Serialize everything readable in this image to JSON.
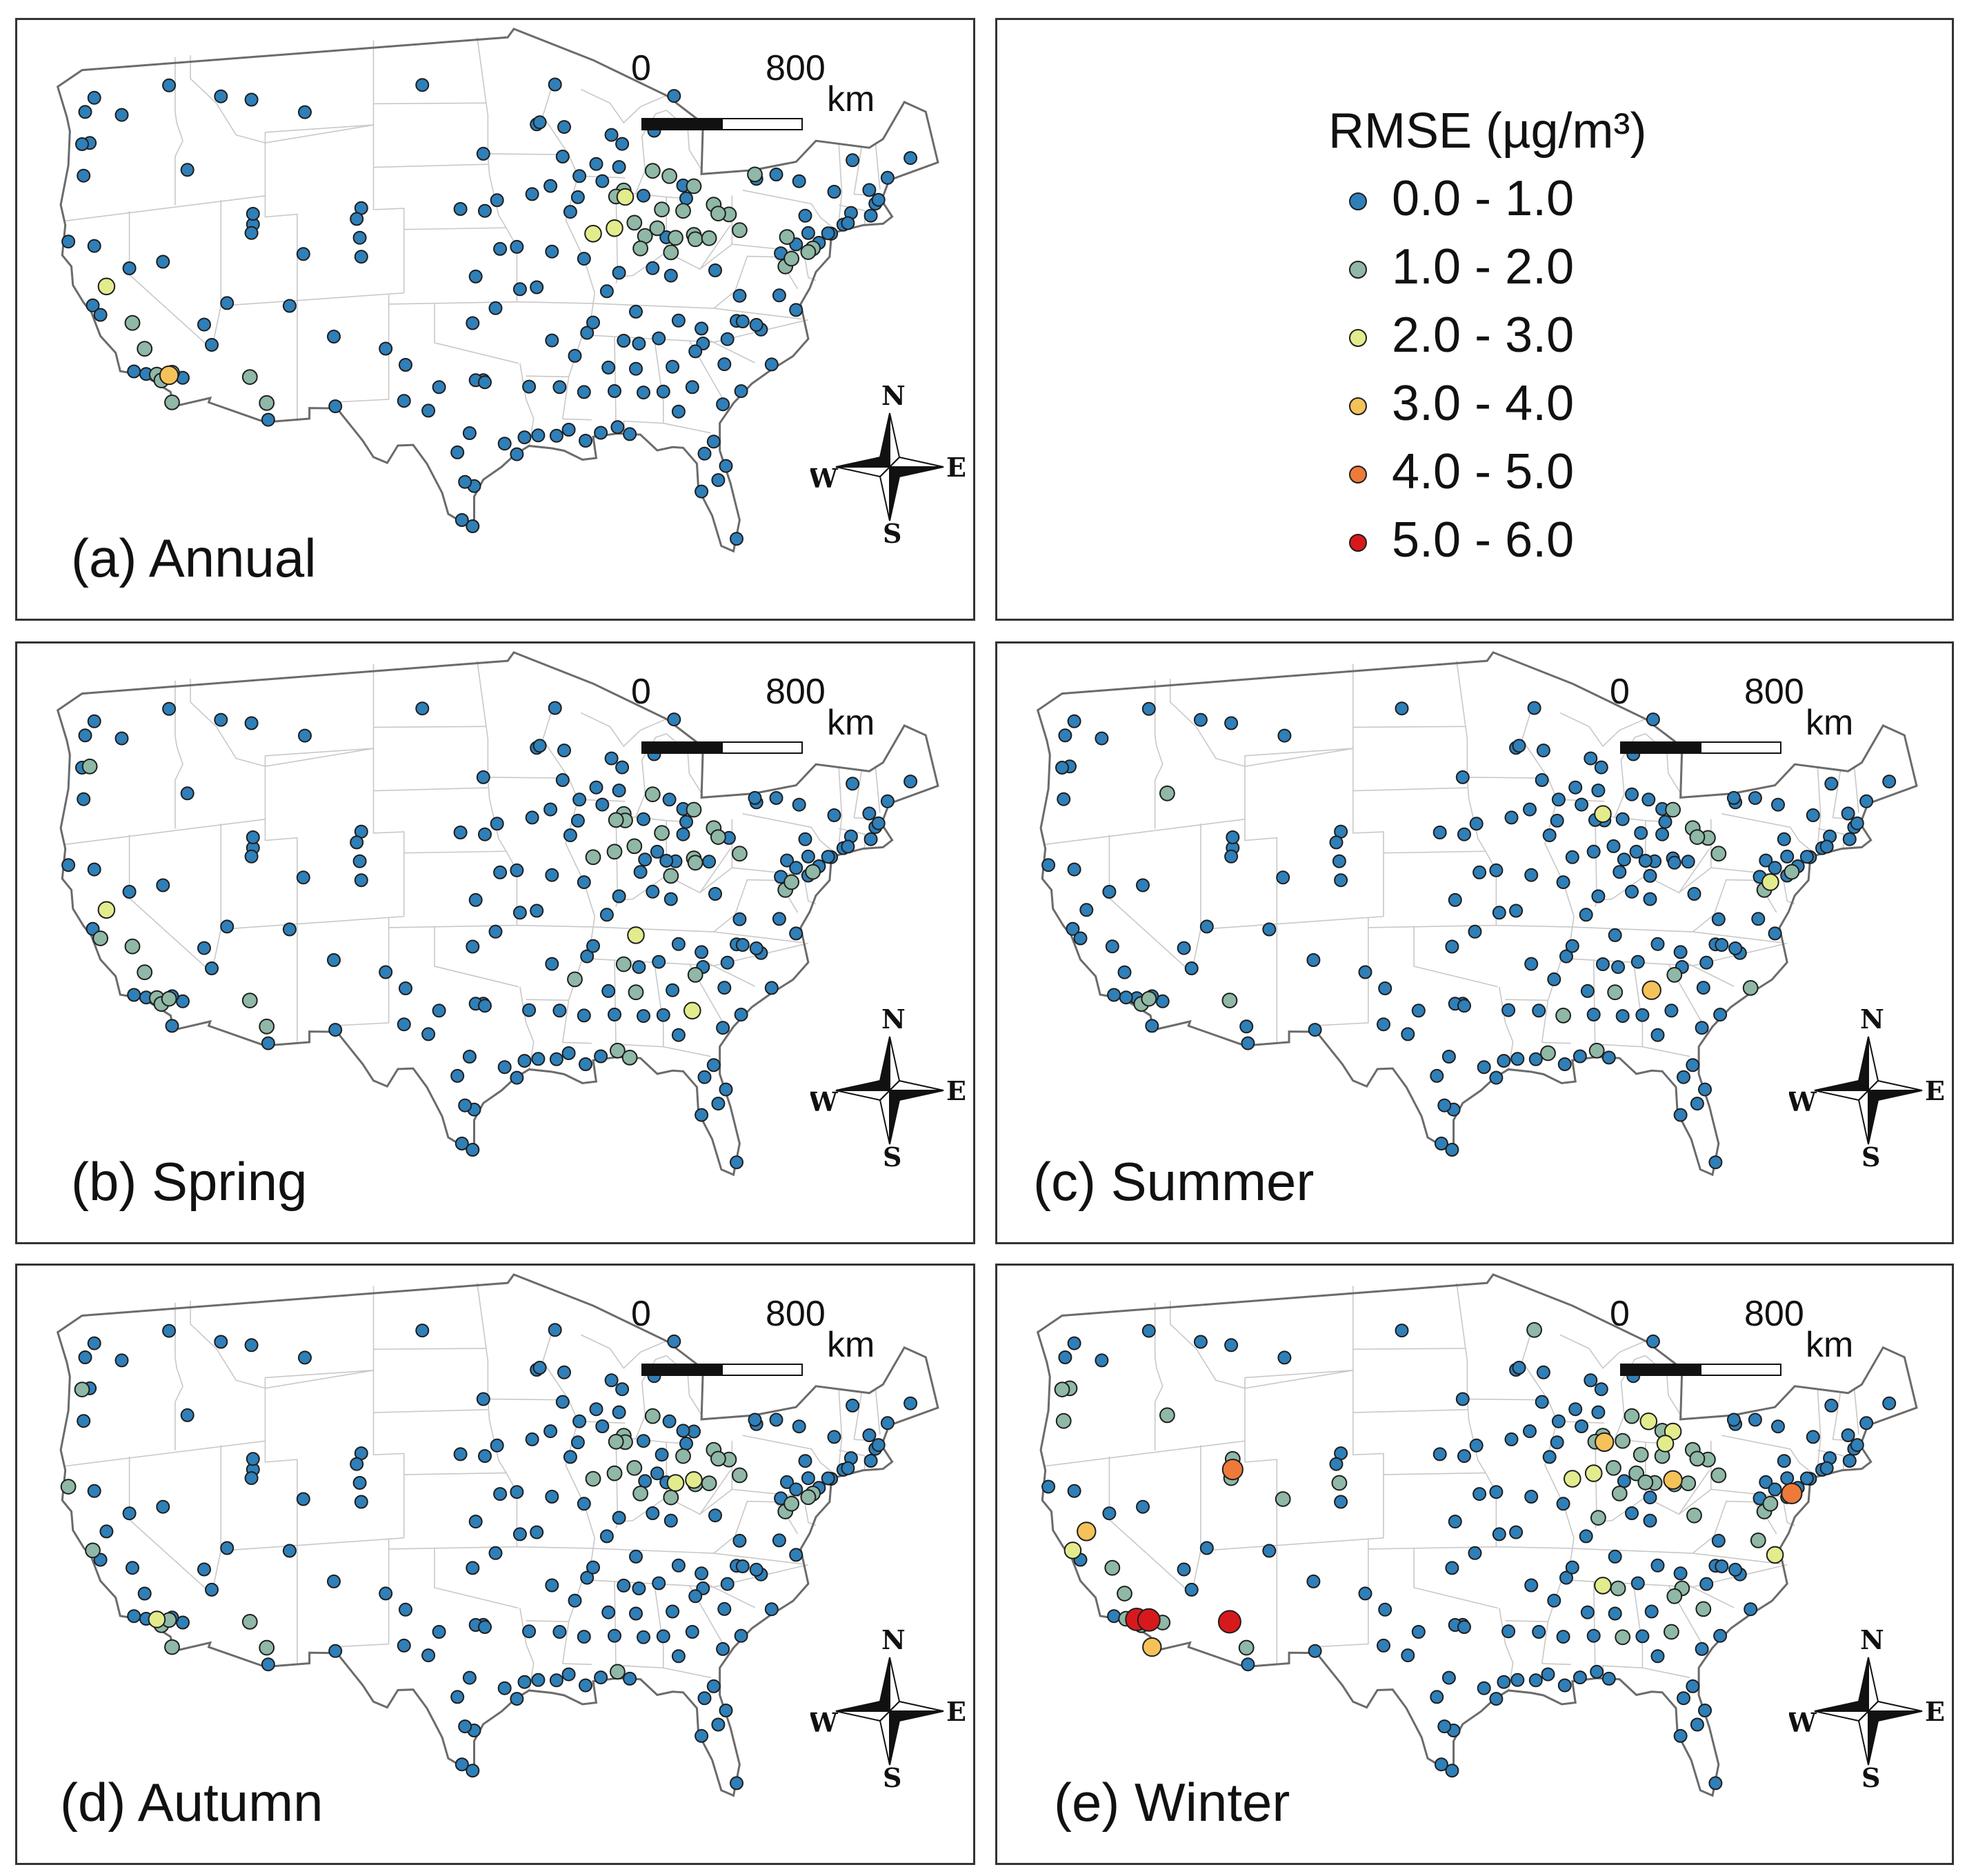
{
  "legend": {
    "title": "RMSE (µg/m³)",
    "classes": [
      {
        "label": "0.0 - 1.0",
        "color": "#2f7fb8"
      },
      {
        "label": "1.0 - 2.0",
        "color": "#8fb8a6"
      },
      {
        "label": "2.0 - 3.0",
        "color": "#e3ec8c"
      },
      {
        "label": "3.0 - 4.0",
        "color": "#f5c25a"
      },
      {
        "label": "4.0 - 5.0",
        "color": "#ee7a3a"
      },
      {
        "label": "5.0 - 6.0",
        "color": "#d7191c"
      }
    ]
  },
  "scale": {
    "start": "0",
    "end": "800",
    "unit": "km"
  },
  "compass": {
    "n": "N",
    "s": "S",
    "e": "E",
    "w": "W"
  },
  "panels": [
    {
      "key": "annual",
      "label": "(a) Annual"
    },
    {
      "key": "spring",
      "label": "(b) Spring"
    },
    {
      "key": "summer",
      "label": "(c) Summer"
    },
    {
      "key": "autumn",
      "label": "(d) Autumn"
    },
    {
      "key": "winter",
      "label": "(e) Winter"
    }
  ],
  "colors": {
    "outline": "#6b6b6b",
    "state_lines": "#c8c8c8",
    "dot_stroke": "#1e1e1e"
  },
  "sites": [
    [
      -122.3,
      47.6
    ],
    [
      -122.6,
      45.5
    ],
    [
      -117.4,
      47.7
    ],
    [
      -123.0,
      44.0
    ],
    [
      -116.2,
      43.6
    ],
    [
      -112.0,
      46.6
    ],
    [
      -114.0,
      46.9
    ],
    [
      -108.5,
      45.8
    ],
    [
      -104.8,
      41.1
    ],
    [
      -100.8,
      46.8
    ],
    [
      -122.4,
      37.8
    ],
    [
      -121.9,
      37.3
    ],
    [
      -121.5,
      38.6
    ],
    [
      -119.8,
      36.7
    ],
    [
      -119.0,
      35.4
    ],
    [
      -118.2,
      34.1
    ],
    [
      -117.9,
      33.8
    ],
    [
      -117.4,
      34.0
    ],
    [
      -117.2,
      32.7
    ],
    [
      -116.5,
      33.8
    ],
    [
      -115.1,
      36.2
    ],
    [
      -112.1,
      33.5
    ],
    [
      -111.0,
      32.2
    ],
    [
      -111.9,
      40.7
    ],
    [
      -111.9,
      41.2
    ],
    [
      -112.0,
      40.3
    ],
    [
      -106.6,
      35.1
    ],
    [
      -106.5,
      31.8
    ],
    [
      -104.9,
      39.7
    ],
    [
      -105.1,
      40.6
    ],
    [
      -104.8,
      38.8
    ],
    [
      -108.6,
      39.1
    ],
    [
      -97.5,
      35.5
    ],
    [
      -96.0,
      36.2
    ],
    [
      -95.4,
      29.8
    ],
    [
      -94.1,
      30.1
    ],
    [
      -96.8,
      32.8
    ],
    [
      -97.3,
      32.8
    ],
    [
      -98.5,
      29.4
    ],
    [
      -97.7,
      30.3
    ],
    [
      -97.4,
      27.8
    ],
    [
      -101.9,
      33.6
    ],
    [
      -94.6,
      39.1
    ],
    [
      -93.6,
      41.6
    ],
    [
      -95.9,
      41.3
    ],
    [
      -96.7,
      40.8
    ],
    [
      -93.3,
      44.9
    ],
    [
      -92.1,
      46.8
    ],
    [
      -90.2,
      38.6
    ],
    [
      -90.1,
      30.0
    ],
    [
      -91.2,
      30.5
    ],
    [
      -92.3,
      34.7
    ],
    [
      -90.0,
      35.1
    ],
    [
      -89.4,
      43.1
    ],
    [
      -87.9,
      43.0
    ],
    [
      -87.6,
      41.9
    ],
    [
      -87.5,
      41.6
    ],
    [
      -89.6,
      39.8
    ],
    [
      -88.2,
      40.1
    ],
    [
      -86.2,
      39.8
    ],
    [
      -85.1,
      41.1
    ],
    [
      -84.5,
      39.1
    ],
    [
      -84.4,
      33.7
    ],
    [
      -86.8,
      33.5
    ],
    [
      -86.8,
      36.2
    ],
    [
      -85.7,
      38.3
    ],
    [
      -83.0,
      40.0
    ],
    [
      -81.7,
      41.5
    ],
    [
      -80.0,
      40.4
    ],
    [
      -83.0,
      42.3
    ],
    [
      -84.6,
      42.7
    ],
    [
      -85.7,
      42.9
    ],
    [
      -82.4,
      34.9
    ],
    [
      -81.0,
      34.0
    ],
    [
      -80.8,
      35.2
    ],
    [
      -78.6,
      35.8
    ],
    [
      -79.9,
      32.8
    ],
    [
      -81.1,
      32.1
    ],
    [
      -81.7,
      30.3
    ],
    [
      -82.5,
      27.9
    ],
    [
      -80.2,
      25.8
    ],
    [
      -81.4,
      28.5
    ],
    [
      -77.0,
      38.9
    ],
    [
      -76.6,
      39.3
    ],
    [
      -75.2,
      39.9
    ],
    [
      -74.0,
      40.7
    ],
    [
      -73.8,
      42.7
    ],
    [
      -71.1,
      42.4
    ],
    [
      -72.7,
      41.8
    ],
    [
      -71.4,
      41.8
    ],
    [
      -70.3,
      43.7
    ],
    [
      -68.8,
      44.8
    ],
    [
      -72.6,
      44.3
    ],
    [
      -71.5,
      43.0
    ],
    [
      -76.1,
      43.0
    ],
    [
      -78.9,
      42.9
    ],
    [
      -77.6,
      43.2
    ],
    [
      -79.0,
      43.1
    ],
    [
      -76.3,
      36.9
    ],
    [
      -77.4,
      37.5
    ],
    [
      -80.0,
      37.3
    ],
    [
      -81.6,
      38.4
    ],
    [
      -84.0,
      35.9
    ],
    [
      -85.3,
      35.0
    ],
    [
      -88.0,
      30.7
    ],
    [
      -86.3,
      32.4
    ],
    [
      -89.1,
      30.4
    ],
    [
      -90.2,
      32.3
    ],
    [
      -88.7,
      37.1
    ],
    [
      -84.2,
      39.8
    ],
    [
      -74.2,
      40.7
    ],
    [
      -75.5,
      39.7
    ],
    [
      -74.8,
      40.2
    ],
    [
      -76.9,
      40.3
    ],
    [
      -77.3,
      39.5
    ],
    [
      -83.7,
      42.3
    ],
    [
      -83.5,
      41.7
    ],
    [
      -86.3,
      41.7
    ],
    [
      -87.9,
      38.0
    ],
    [
      -82.5,
      35.6
    ],
    [
      -84.5,
      38.0
    ],
    [
      -93.8,
      32.5
    ],
    [
      -91.6,
      43.4
    ],
    [
      -90.6,
      41.5
    ],
    [
      -92.4,
      42.0
    ],
    [
      -94.4,
      37.1
    ],
    [
      -97.3,
      37.7
    ],
    [
      -96.7,
      32.7
    ],
    [
      -98.0,
      28.0
    ],
    [
      -94.6,
      29.3
    ],
    [
      -123.1,
      45.5
    ],
    [
      -122.9,
      47.0
    ],
    [
      -120.5,
      46.6
    ],
    [
      -124.0,
      41.0
    ],
    [
      -122.3,
      40.6
    ],
    [
      -120.0,
      39.3
    ],
    [
      -117.8,
      39.4
    ],
    [
      -114.6,
      35.2
    ],
    [
      -117.2,
      34.1
    ],
    [
      -118.9,
      34.2
    ],
    [
      -119.7,
      34.4
    ],
    [
      -113.6,
      37.1
    ],
    [
      -110.9,
      31.4
    ],
    [
      -109.5,
      36.7
    ],
    [
      -103.2,
      34.4
    ],
    [
      -99.7,
      32.5
    ],
    [
      -102.0,
      31.9
    ],
    [
      -100.4,
      31.4
    ],
    [
      -98.2,
      26.2
    ],
    [
      -97.5,
      25.9
    ],
    [
      -88.1,
      41.6
    ],
    [
      -86.9,
      40.4
    ],
    [
      -85.4,
      40.2
    ],
    [
      -84.8,
      39.8
    ],
    [
      -82.9,
      39.8
    ],
    [
      -82.0,
      39.9
    ],
    [
      -80.7,
      41.1
    ],
    [
      -81.4,
      41.1
    ],
    [
      -83.7,
      41.1
    ],
    [
      -86.5,
      39.2
    ],
    [
      -88.4,
      44.5
    ],
    [
      -87.7,
      44.1
    ],
    [
      -84.3,
      46.5
    ],
    [
      -85.6,
      44.8
    ],
    [
      -75.7,
      41.4
    ],
    [
      -76.3,
      40.0
    ],
    [
      -75.5,
      40.6
    ],
    [
      -73.2,
      41.2
    ],
    [
      -72.9,
      41.3
    ],
    [
      -70.9,
      42.6
    ],
    [
      -80.2,
      36.1
    ],
    [
      -79.8,
      36.1
    ],
    [
      -78.9,
      36.0
    ],
    [
      -77.9,
      34.2
    ],
    [
      -83.1,
      32.8
    ],
    [
      -84.0,
      31.6
    ],
    [
      -82.9,
      34.5
    ],
    [
      -80.9,
      29.2
    ],
    [
      -82.3,
      29.7
    ],
    [
      -87.2,
      30.4
    ],
    [
      -89.6,
      35.6
    ],
    [
      -91.8,
      32.5
    ],
    [
      -93.2,
      30.2
    ],
    [
      -92.0,
      30.2
    ],
    [
      -90.8,
      34.0
    ],
    [
      -88.6,
      33.5
    ],
    [
      -87.6,
      34.8
    ],
    [
      -86.6,
      34.7
    ],
    [
      -85.0,
      32.5
    ],
    [
      -88.2,
      32.4
    ],
    [
      -90.5,
      42.5
    ],
    [
      -89.0,
      42.3
    ],
    [
      -91.5,
      44.8
    ],
    [
      -93.1,
      45.0
    ],
    [
      -96.8,
      43.5
    ],
    [
      -98.3,
      40.9
    ],
    [
      -95.7,
      39.0
    ],
    [
      -92.3,
      38.9
    ],
    [
      -93.3,
      37.2
    ],
    [
      -91.1,
      40.8
    ]
  ],
  "panel_values": {
    "annual": [
      0,
      0,
      0,
      0,
      0,
      0,
      0,
      0,
      0,
      0,
      0,
      0,
      2,
      1,
      1,
      1,
      1,
      3,
      1,
      0,
      0,
      1,
      1,
      0,
      0,
      0,
      0,
      0,
      0,
      0,
      0,
      0,
      0,
      0,
      0,
      0,
      0,
      0,
      0,
      0,
      0,
      0,
      0,
      0,
      0,
      0,
      0,
      0,
      0,
      0,
      0,
      0,
      0,
      0,
      0,
      1,
      2,
      2,
      2,
      1,
      1,
      1,
      0,
      0,
      0,
      0,
      1,
      1,
      1,
      1,
      1,
      1,
      0,
      0,
      0,
      0,
      0,
      0,
      0,
      0,
      0,
      0,
      1,
      1,
      1,
      0,
      0,
      0,
      0,
      0,
      0,
      0,
      0,
      0,
      0,
      0,
      0,
      1,
      0,
      0,
      0,
      0,
      0,
      0,
      0,
      0,
      0,
      0,
      0,
      1,
      0,
      1,
      0,
      1,
      0,
      0,
      0,
      0,
      0,
      0,
      0,
      0,
      0,
      0,
      0,
      0,
      0,
      0,
      0,
      0,
      0,
      0,
      0,
      0,
      0,
      0,
      0,
      0,
      1,
      0,
      0,
      0,
      0,
      0,
      0,
      0,
      0,
      0,
      0,
      0,
      1,
      1,
      1,
      0,
      1,
      1,
      1,
      1,
      1,
      1,
      0,
      0,
      0,
      0,
      0,
      0,
      0,
      0,
      0,
      0,
      0,
      0,
      0,
      0,
      0,
      0,
      0,
      0,
      0,
      0,
      0,
      0,
      0,
      0,
      0,
      0,
      0,
      0,
      0,
      0,
      0,
      0,
      0,
      0,
      0,
      0,
      0,
      0,
      0,
      0
    ],
    "spring": [
      0,
      1,
      0,
      0,
      0,
      0,
      0,
      0,
      0,
      0,
      0,
      1,
      2,
      1,
      1,
      1,
      1,
      1,
      0,
      0,
      0,
      1,
      1,
      0,
      0,
      0,
      0,
      0,
      0,
      0,
      0,
      0,
      0,
      0,
      0,
      0,
      0,
      0,
      0,
      0,
      0,
      0,
      0,
      0,
      0,
      0,
      0,
      0,
      0,
      0,
      0,
      0,
      0,
      0,
      0,
      1,
      1,
      1,
      1,
      0,
      1,
      1,
      0,
      1,
      2,
      0,
      1,
      1,
      1,
      1,
      0,
      1,
      0,
      0,
      0,
      0,
      0,
      0,
      0,
      0,
      0,
      0,
      1,
      1,
      1,
      0,
      0,
      0,
      0,
      0,
      0,
      0,
      0,
      0,
      0,
      0,
      0,
      0,
      0,
      0,
      0,
      0,
      0,
      0,
      1,
      0,
      0,
      0,
      0,
      0,
      0,
      0,
      0,
      0,
      0,
      0,
      0,
      0,
      0,
      0,
      0,
      0,
      0,
      0,
      0,
      0,
      0,
      0,
      0,
      0,
      0,
      0,
      0,
      0,
      0,
      0,
      0,
      0,
      0,
      0,
      0,
      0,
      0,
      0,
      0,
      0,
      0,
      0,
      0,
      0,
      1,
      1,
      0,
      0,
      1,
      0,
      0,
      1,
      0,
      0,
      0,
      0,
      0,
      0,
      0,
      0,
      0,
      0,
      0,
      0,
      0,
      0,
      0,
      0,
      2,
      0,
      1,
      0,
      0,
      1,
      0,
      0,
      0,
      0,
      1,
      0,
      1,
      0,
      0,
      0,
      0,
      0,
      0,
      0,
      0,
      0,
      0,
      0,
      0,
      0
    ],
    "summer": [
      0,
      0,
      0,
      0,
      1,
      0,
      0,
      0,
      0,
      0,
      0,
      0,
      0,
      0,
      0,
      0,
      1,
      1,
      0,
      0,
      0,
      1,
      0,
      0,
      0,
      0,
      0,
      0,
      0,
      0,
      0,
      0,
      0,
      0,
      0,
      0,
      0,
      0,
      0,
      0,
      0,
      0,
      0,
      0,
      0,
      0,
      0,
      0,
      0,
      0,
      1,
      0,
      0,
      0,
      0,
      2,
      0,
      0,
      0,
      0,
      0,
      0,
      3,
      1,
      0,
      0,
      0,
      1,
      1,
      1,
      0,
      0,
      0,
      0,
      0,
      0,
      0,
      0,
      0,
      0,
      0,
      0,
      1,
      2,
      1,
      0,
      0,
      0,
      0,
      0,
      0,
      0,
      0,
      0,
      0,
      0,
      0,
      0,
      0,
      0,
      0,
      0,
      0,
      0,
      1,
      0,
      0,
      1,
      0,
      0,
      0,
      0,
      0,
      0,
      0,
      0,
      0,
      0,
      0,
      0,
      0,
      0,
      0,
      0,
      0,
      0,
      0,
      0,
      0,
      0,
      0,
      0,
      0,
      0,
      0,
      0,
      0,
      0,
      0,
      0,
      0,
      0,
      0,
      0,
      0,
      0,
      0,
      0,
      0,
      0,
      0,
      0,
      0,
      0,
      0,
      0,
      1,
      1,
      0,
      0,
      0,
      0,
      0,
      0,
      0,
      0,
      0,
      0,
      0,
      0,
      0,
      0,
      0,
      1,
      0,
      0,
      1,
      0,
      0,
      0,
      0,
      0,
      0,
      0,
      0,
      0,
      0,
      0,
      0,
      0,
      0,
      0,
      0,
      0,
      0,
      0,
      0,
      0,
      0,
      0
    ],
    "autumn": [
      0,
      0,
      0,
      0,
      0,
      0,
      0,
      0,
      0,
      0,
      1,
      0,
      0,
      0,
      0,
      2,
      1,
      1,
      1,
      0,
      0,
      1,
      1,
      0,
      0,
      0,
      0,
      0,
      0,
      0,
      0,
      0,
      0,
      0,
      0,
      0,
      0,
      0,
      0,
      0,
      0,
      0,
      0,
      0,
      0,
      0,
      0,
      0,
      0,
      0,
      0,
      0,
      0,
      0,
      0,
      1,
      1,
      1,
      1,
      0,
      0,
      1,
      0,
      0,
      0,
      0,
      2,
      1,
      1,
      0,
      0,
      1,
      0,
      0,
      0,
      0,
      0,
      0,
      0,
      0,
      0,
      0,
      1,
      1,
      1,
      0,
      0,
      0,
      0,
      0,
      0,
      0,
      0,
      0,
      0,
      0,
      0,
      0,
      0,
      0,
      0,
      0,
      0,
      0,
      1,
      0,
      0,
      0,
      0,
      2,
      0,
      1,
      0,
      0,
      0,
      0,
      0,
      0,
      0,
      0,
      0,
      0,
      0,
      0,
      0,
      0,
      0,
      0,
      0,
      0,
      1,
      0,
      0,
      1,
      0,
      0,
      0,
      0,
      0,
      0,
      0,
      0,
      0,
      0,
      0,
      0,
      0,
      0,
      0,
      0,
      1,
      1,
      0,
      0,
      1,
      1,
      1,
      1,
      1,
      1,
      0,
      0,
      0,
      0,
      0,
      0,
      0,
      0,
      0,
      0,
      0,
      0,
      0,
      0,
      0,
      0,
      0,
      0,
      0,
      0,
      0,
      0,
      0,
      0,
      0,
      0,
      0,
      0,
      0,
      0,
      0,
      0,
      0,
      0,
      0,
      0,
      0,
      0,
      0,
      0
    ],
    "winter": [
      0,
      1,
      0,
      1,
      1,
      0,
      0,
      0,
      0,
      0,
      2,
      0,
      3,
      1,
      1,
      5,
      1,
      5,
      3,
      1,
      0,
      5,
      1,
      4,
      1,
      1,
      0,
      0,
      1,
      0,
      0,
      1,
      0,
      0,
      0,
      0,
      0,
      0,
      0,
      0,
      0,
      0,
      0,
      0,
      0,
      0,
      0,
      1,
      0,
      0,
      0,
      0,
      0,
      0,
      0,
      1,
      3,
      2,
      2,
      0,
      1,
      0,
      0,
      0,
      0,
      0,
      3,
      1,
      1,
      2,
      2,
      1,
      1,
      1,
      0,
      0,
      0,
      0,
      0,
      0,
      0,
      0,
      1,
      1,
      4,
      0,
      0,
      0,
      0,
      0,
      0,
      0,
      0,
      0,
      0,
      0,
      0,
      0,
      2,
      1,
      0,
      1,
      0,
      0,
      0,
      1,
      0,
      0,
      0,
      1,
      0,
      0,
      0,
      0,
      0,
      1,
      2,
      1,
      1,
      0,
      0,
      0,
      0,
      0,
      0,
      0,
      0,
      0,
      0,
      0,
      1,
      0,
      0,
      0,
      0,
      0,
      0,
      0,
      0,
      1,
      0,
      0,
      0,
      0,
      0,
      0,
      0,
      0,
      0,
      0,
      1,
      1,
      1,
      1,
      1,
      1,
      1,
      1,
      1,
      1,
      0,
      0,
      0,
      0,
      0,
      0,
      0,
      0,
      0,
      0,
      0,
      0,
      0,
      0,
      1,
      0,
      1,
      0,
      0,
      0,
      0,
      0,
      0,
      0,
      0,
      0,
      2,
      1,
      0,
      0,
      0,
      0,
      0,
      0,
      0,
      0,
      0,
      0,
      0,
      0
    ]
  }
}
